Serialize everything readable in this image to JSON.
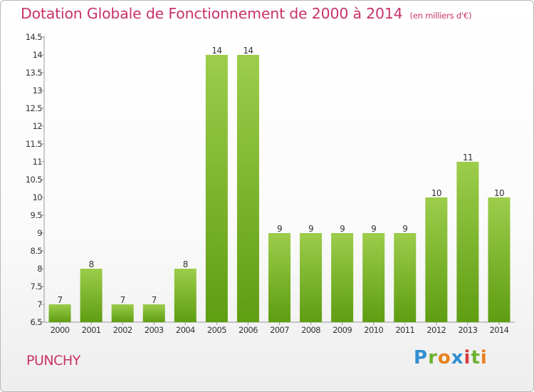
{
  "header": {
    "title": "Dotation Globale de Fonctionnement de 2000 à 2014",
    "unit": "(en milliers d'€)"
  },
  "commune": "PUNCHY",
  "brand": {
    "letters": [
      "P",
      "r",
      "o",
      "x",
      "i",
      "t",
      "i"
    ]
  },
  "colors": {
    "title": "#c8326b",
    "bar_top": "#9ccd4b",
    "bar_bottom": "#5f9d12"
  },
  "chart_data": {
    "type": "bar",
    "title": "Dotation Globale de Fonctionnement de 2000 à 2014",
    "subtitle": "(en milliers d'€)",
    "xlabel": "",
    "ylabel": "",
    "categories": [
      "2000",
      "2001",
      "2002",
      "2003",
      "2004",
      "2005",
      "2006",
      "2007",
      "2008",
      "2009",
      "2010",
      "2011",
      "2012",
      "2013",
      "2014"
    ],
    "values": [
      7,
      8,
      7,
      7,
      8,
      14,
      14,
      9,
      9,
      9,
      9,
      9,
      10,
      11,
      10
    ],
    "ylim": [
      6.5,
      14.5
    ],
    "yticks": [
      "6.5",
      "7",
      "7.5",
      "8",
      "8.5",
      "9",
      "9.5",
      "10",
      "10.5",
      "11",
      "11.5",
      "12",
      "12.5",
      "13",
      "13.5",
      "14",
      "14.5"
    ],
    "grid": false,
    "legend": "none"
  }
}
